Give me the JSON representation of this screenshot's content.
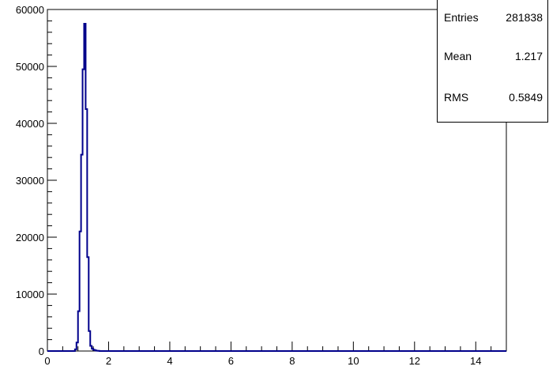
{
  "chart_data": {
    "type": "histogram",
    "title": "",
    "xlabel": "",
    "ylabel": "",
    "xlim": [
      0,
      15
    ],
    "ylim": [
      0,
      60000
    ],
    "x_ticks": [
      0,
      2,
      4,
      6,
      8,
      10,
      12,
      14
    ],
    "y_ticks": [
      0,
      10000,
      20000,
      30000,
      40000,
      50000,
      60000
    ],
    "bin_width": 0.05,
    "bins": [
      {
        "x": 0.9,
        "value": 300
      },
      {
        "x": 0.95,
        "value": 1500
      },
      {
        "x": 1.0,
        "value": 7000
      },
      {
        "x": 1.05,
        "value": 21000
      },
      {
        "x": 1.1,
        "value": 34500
      },
      {
        "x": 1.15,
        "value": 49500
      },
      {
        "x": 1.2,
        "value": 57500
      },
      {
        "x": 1.25,
        "value": 42500
      },
      {
        "x": 1.3,
        "value": 16500
      },
      {
        "x": 1.35,
        "value": 3500
      },
      {
        "x": 1.4,
        "value": 900
      },
      {
        "x": 1.45,
        "value": 400
      },
      {
        "x": 1.5,
        "value": 200
      },
      {
        "x": 1.55,
        "value": 120
      },
      {
        "x": 1.6,
        "value": 60
      },
      {
        "x": 1.65,
        "value": 30
      }
    ],
    "line_color": "#00008b",
    "stats": {
      "entries_label": "Entries",
      "entries_value": "281838",
      "mean_label": "Mean",
      "mean_value": "1.217",
      "rms_label": "RMS",
      "rms_value": "0.5849"
    }
  }
}
